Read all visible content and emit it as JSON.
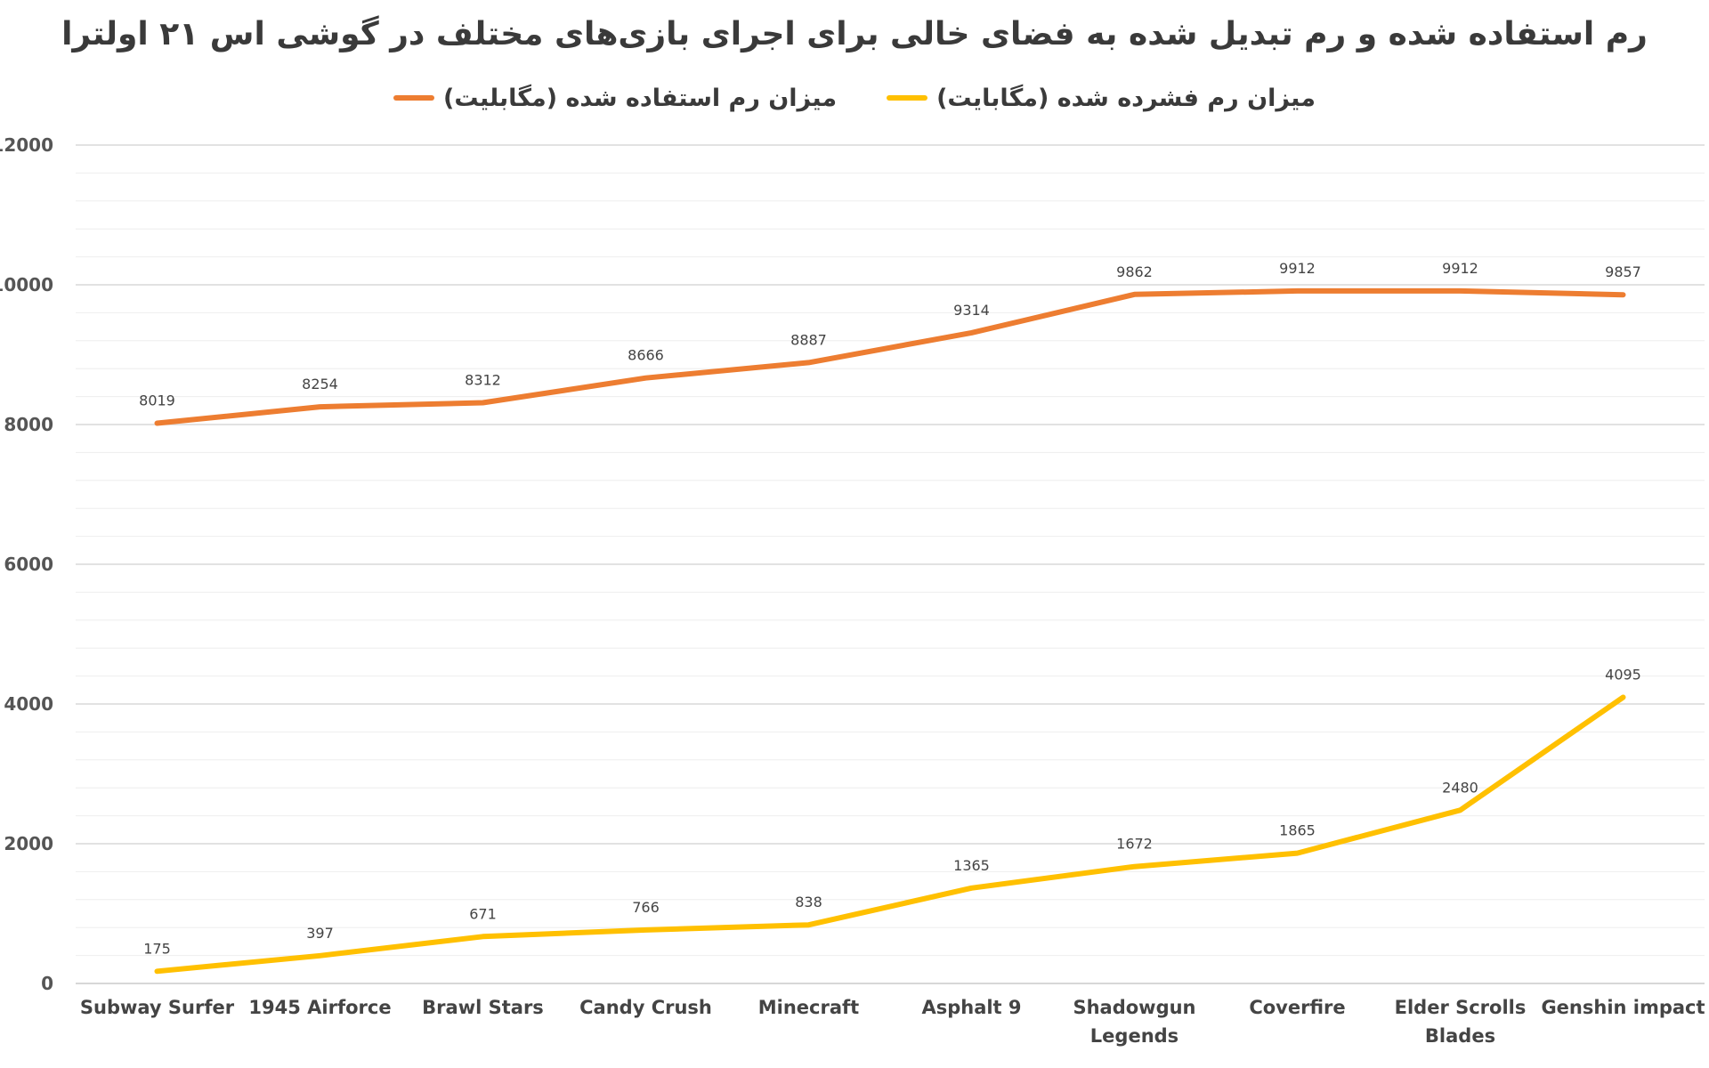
{
  "chart_data": {
    "type": "line",
    "title": "رم استفاده شده و رم تبدیل شده به فضای خالی برای اجرای بازی‌های مختلف در گوشی اس ۲۱ اولترا",
    "categories": [
      "Subway Surfer",
      "1945 Airforce",
      "Brawl Stars",
      "Candy Crush",
      "Minecraft",
      "Asphalt 9",
      "Shadowgun Legends",
      "Coverfire",
      "Elder Scrolls Blades",
      "Genshin impact"
    ],
    "series": [
      {
        "name": "میزان رم استفاده شده (مگابلیت)",
        "color": "#ED7D31",
        "values": [
          8019,
          8254,
          8312,
          8666,
          8887,
          9314,
          9862,
          9912,
          9912,
          9857
        ]
      },
      {
        "name": "میزان رم فشرده شده (مگابایت)",
        "color": "#FFC000",
        "values": [
          175,
          397,
          671,
          766,
          838,
          1365,
          1672,
          1865,
          2480,
          4095
        ]
      }
    ],
    "yticks": [
      "0",
      "2000",
      "4000",
      "6000",
      "8000",
      "10000",
      "12000"
    ],
    "ylim": [
      0,
      12000
    ],
    "xlabel": "",
    "ylabel": "",
    "grid": true,
    "legend_position": "top"
  }
}
